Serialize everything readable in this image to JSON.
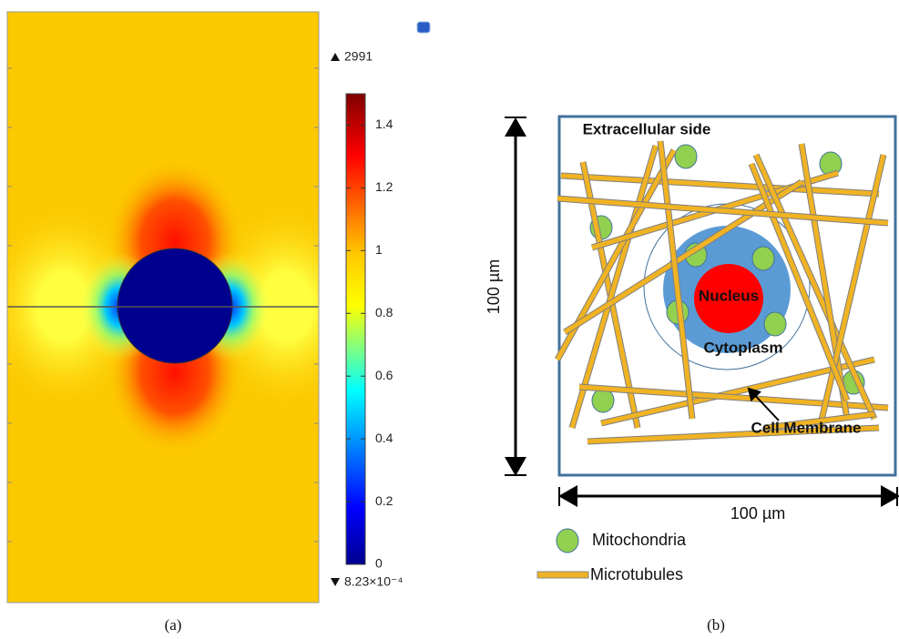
{
  "panel_a": {
    "max_label": "2991",
    "min_label": "8.23×10⁻⁴",
    "colorbar": {
      "range": [
        0,
        1.5
      ],
      "ticks": [
        0,
        0.2,
        0.4,
        0.6,
        0.8,
        1,
        1.2,
        1.4
      ]
    },
    "caption": "(a)"
  },
  "panel_b": {
    "extracellular": "Extracellular side",
    "nucleus": "Nucleus",
    "cytoplasm": "Cytoplasm",
    "membrane": "Cell Membrane",
    "height": "100 µm",
    "width": "100 µm",
    "legend": [
      "Mitochondria",
      "Microtubules"
    ],
    "caption": "(b)"
  }
}
